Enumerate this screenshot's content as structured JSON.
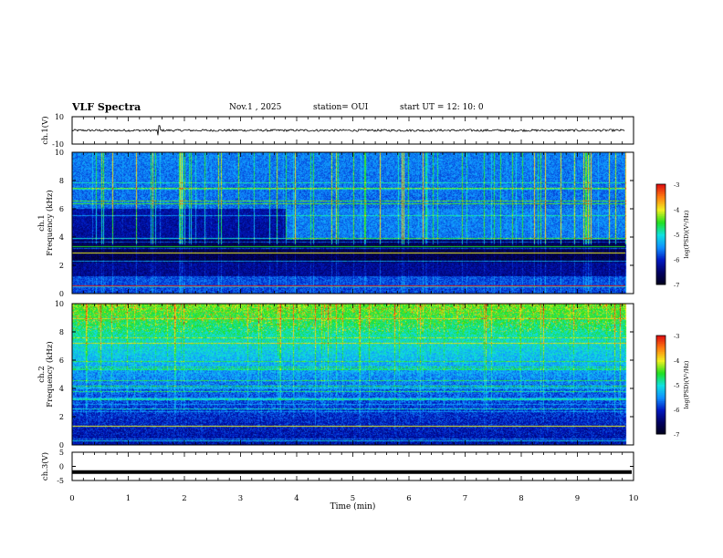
{
  "header": {
    "title": "VLF Spectra",
    "date": "Nov.1 , 2025",
    "station": "station= OUI",
    "start": "start UT = 12: 10: 0"
  },
  "chart_data": [
    {
      "type": "line",
      "name": "ch1-waveform",
      "ylabel": "ch.1(V)",
      "ylim": [
        -10,
        10
      ],
      "yticks": [
        "10",
        "-10"
      ],
      "baseline": 0,
      "xlim": [
        0,
        10
      ],
      "data_end_min": 9.85
    },
    {
      "type": "heatmap",
      "name": "ch1-spectrogram",
      "ylabel": "ch.1\nFrequency (kHz)",
      "ylim": [
        0,
        10
      ],
      "yticks": [
        "0",
        "2",
        "4",
        "6",
        "8",
        "10"
      ],
      "colorbar": {
        "label": "log(PSD)(V²/Hz)",
        "range": [
          -7,
          -3
        ],
        "ticks": [
          "-3",
          "-4",
          "-5",
          "-6",
          "-7"
        ]
      },
      "description_bands_kHz": [
        0.5,
        1.0,
        2.0,
        3.0,
        3.3,
        5.5
      ],
      "xlim": [
        0,
        10
      ]
    },
    {
      "type": "heatmap",
      "name": "ch2-spectrogram",
      "ylabel": "ch.2\nFrequency (kHz)",
      "ylim": [
        0,
        10
      ],
      "yticks": [
        "0",
        "2",
        "4",
        "6",
        "8",
        "10"
      ],
      "colorbar": {
        "label": "log(PSD)(V²/Hz)",
        "range": [
          -7,
          -3
        ],
        "ticks": [
          "-3",
          "-4",
          "-5",
          "-6",
          "-7"
        ]
      },
      "xlim": [
        0,
        10
      ]
    },
    {
      "type": "line",
      "name": "ch3-waveform",
      "ylabel": "ch.3(V)",
      "ylim": [
        -5,
        5
      ],
      "yticks": [
        "5",
        "0",
        "-5"
      ],
      "baseline": -2,
      "xlim": [
        0,
        10
      ]
    }
  ],
  "xaxis": {
    "label": "Time (min)",
    "ticks": [
      "0",
      "1",
      "2",
      "3",
      "4",
      "5",
      "6",
      "7",
      "8",
      "9",
      "10"
    ]
  },
  "colors": {
    "ink": "#000000",
    "cmap": [
      "#000018",
      "#000060",
      "#0018c0",
      "#1090ff",
      "#10e0e0",
      "#20e020",
      "#f0f020",
      "#ff8010",
      "#e01010",
      "#ffffff"
    ]
  }
}
